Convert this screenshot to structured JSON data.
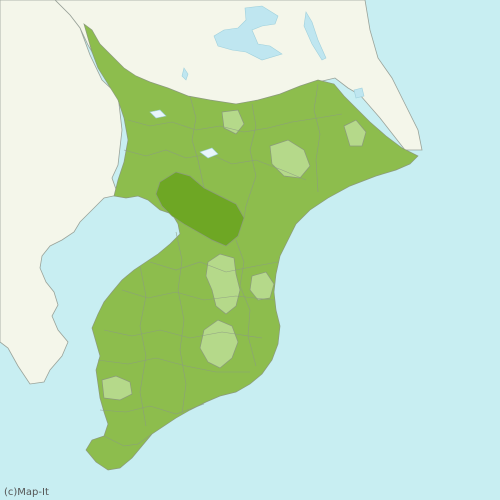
{
  "map": {
    "credit": "(c)Map-It",
    "colors": {
      "sea": "#c8eef2",
      "other_land": "#f4f6ea",
      "region_base": "#8dbd4d",
      "region_light": "#b5d98a",
      "region_highlight": "#6ea724"
    },
    "regions": [
      {
        "id": "highlight",
        "level": "highlight"
      },
      {
        "id": "light-1",
        "level": "light"
      },
      {
        "id": "light-2",
        "level": "light"
      },
      {
        "id": "light-3",
        "level": "light"
      },
      {
        "id": "light-4",
        "level": "light"
      },
      {
        "id": "light-5",
        "level": "light"
      },
      {
        "id": "light-6",
        "level": "light"
      },
      {
        "id": "light-7",
        "level": "light"
      }
    ]
  }
}
